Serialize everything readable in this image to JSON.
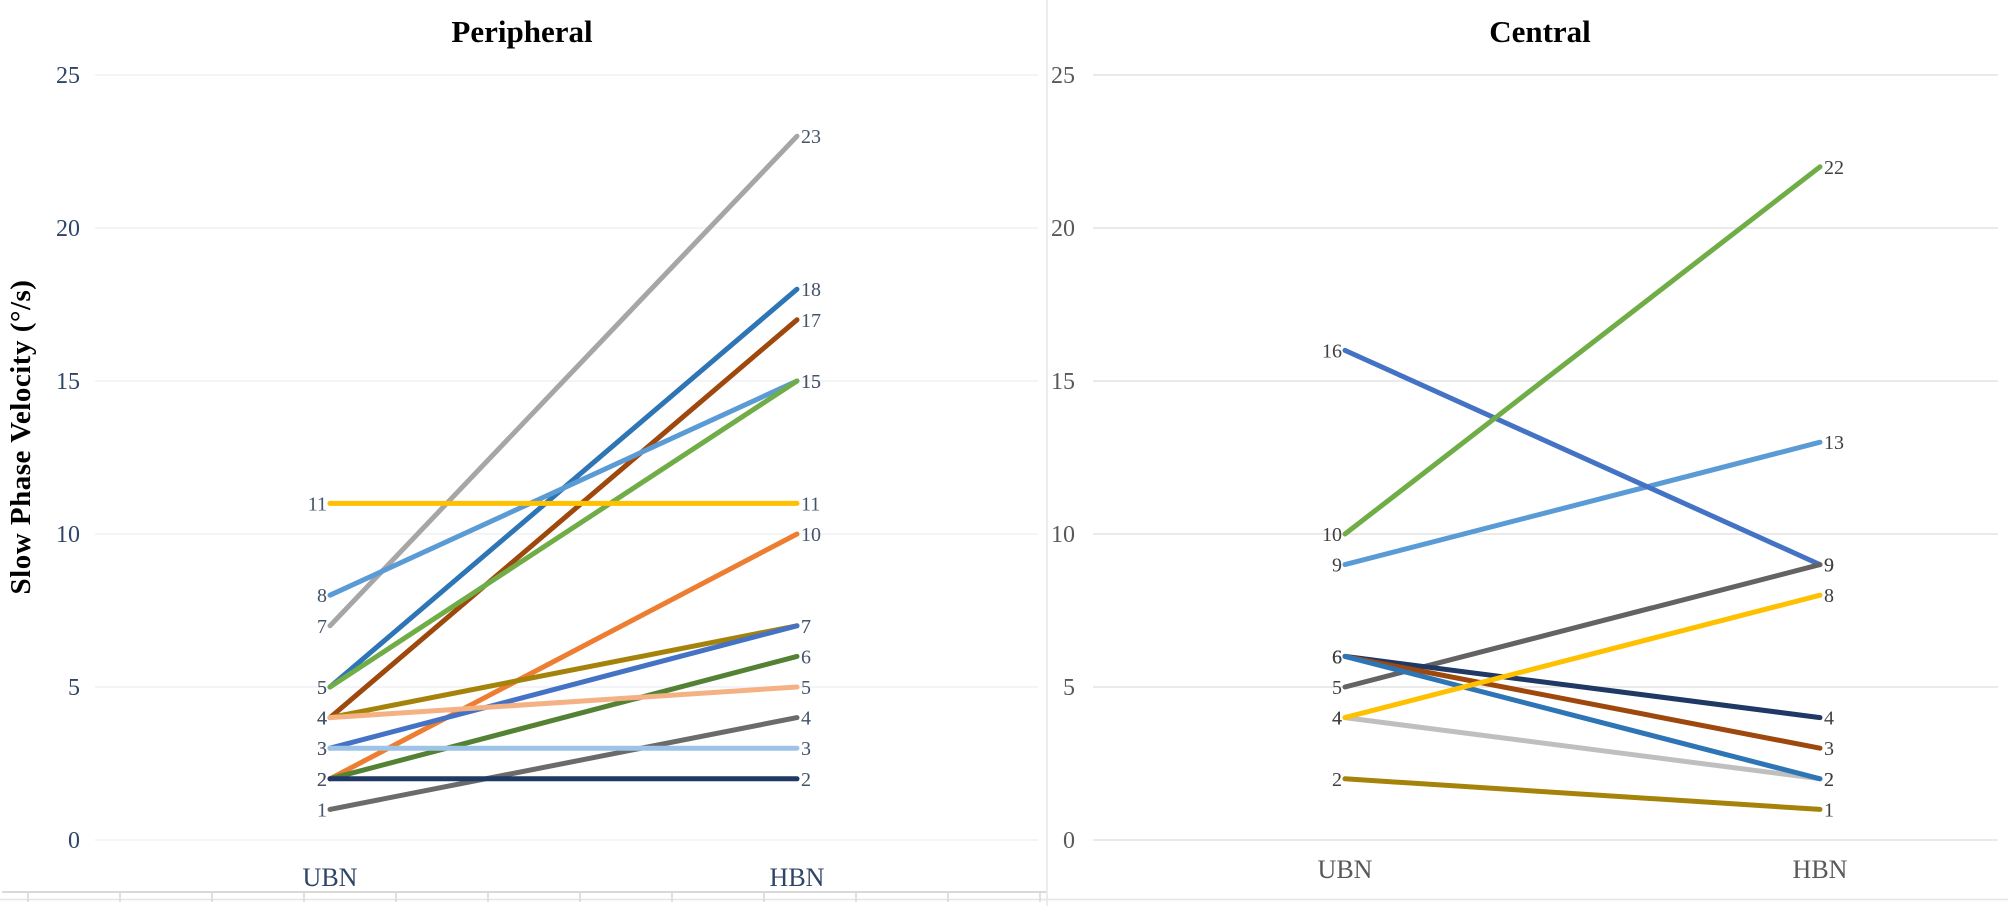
{
  "y_axis_title": "Slow Phase Velocity (°/s)",
  "chart_data": [
    {
      "type": "line",
      "title": "Peripheral",
      "x_categories": [
        "UBN",
        "HBN"
      ],
      "ylabel": "Slow Phase Velocity (°/s)",
      "ylim": [
        0,
        25
      ],
      "y_ticks": [
        0,
        5,
        10,
        15,
        20,
        25
      ],
      "grid": true,
      "legend": "none",
      "series": [
        {
          "color": "#A6A6A6",
          "name": "gray",
          "ubn": 7,
          "hbn": 23
        },
        {
          "color": "#2E75B6",
          "name": "steel-blue",
          "ubn": 5,
          "hbn": 18
        },
        {
          "color": "#9E480E",
          "name": "dark-red",
          "ubn": 4,
          "hbn": 17
        },
        {
          "color": "#5B9BD5",
          "name": "sky-blue",
          "ubn": 8,
          "hbn": 15
        },
        {
          "color": "#70AD47",
          "name": "green",
          "ubn": 5,
          "hbn": 15
        },
        {
          "color": "#ED7D31",
          "name": "orange",
          "ubn": 2,
          "hbn": 10
        },
        {
          "color": "#A5830B",
          "name": "dark-gold",
          "ubn": 4,
          "hbn": 7
        },
        {
          "color": "#4472C4",
          "name": "royal-blue",
          "ubn": 3,
          "hbn": 7
        },
        {
          "color": "#548235",
          "name": "dark-green",
          "ubn": 2,
          "hbn": 6
        },
        {
          "color": "#F4B183",
          "name": "salmon",
          "ubn": 4,
          "hbn": 5
        },
        {
          "color": "#6B6B6B",
          "name": "dark-gray",
          "ubn": 1,
          "hbn": 4
        },
        {
          "color": "#9DC3E6",
          "name": "light-blue",
          "ubn": 3,
          "hbn": 3
        },
        {
          "color": "#1F3864",
          "name": "navy",
          "ubn": 2,
          "hbn": 2
        },
        {
          "color": "#FFC000",
          "name": "yellow",
          "ubn": 11,
          "hbn": 11
        }
      ]
    },
    {
      "type": "line",
      "title": "Central",
      "x_categories": [
        "UBN",
        "HBN"
      ],
      "ylabel": "Slow Phase Velocity (°/s)",
      "ylim": [
        0,
        25
      ],
      "y_ticks": [
        0,
        5,
        10,
        15,
        20,
        25
      ],
      "grid": true,
      "legend": "none",
      "series": [
        {
          "color": "#BFBFBF",
          "name": "light-gray",
          "ubn": 4,
          "hbn": 2
        },
        {
          "color": "#A5830B",
          "name": "dark-gold",
          "ubn": 2,
          "hbn": 1
        },
        {
          "color": "#5B9BD5",
          "name": "sky-blue",
          "ubn": 9,
          "hbn": 13
        },
        {
          "color": "#4472C4",
          "name": "royal-blue",
          "ubn": 16,
          "hbn": 9
        },
        {
          "color": "#636363",
          "name": "dark-gray",
          "ubn": 5,
          "hbn": 9
        },
        {
          "color": "#70AD47",
          "name": "green",
          "ubn": 10,
          "hbn": 22
        },
        {
          "color": "#1F3864",
          "name": "navy",
          "ubn": 6,
          "hbn": 4
        },
        {
          "color": "#9E480E",
          "name": "dark-red",
          "ubn": 6,
          "hbn": 3
        },
        {
          "color": "#2E75B6",
          "name": "steel-blue",
          "ubn": 6,
          "hbn": 2
        },
        {
          "color": "#FFC000",
          "name": "yellow",
          "ubn": 4,
          "hbn": 8
        }
      ]
    }
  ]
}
